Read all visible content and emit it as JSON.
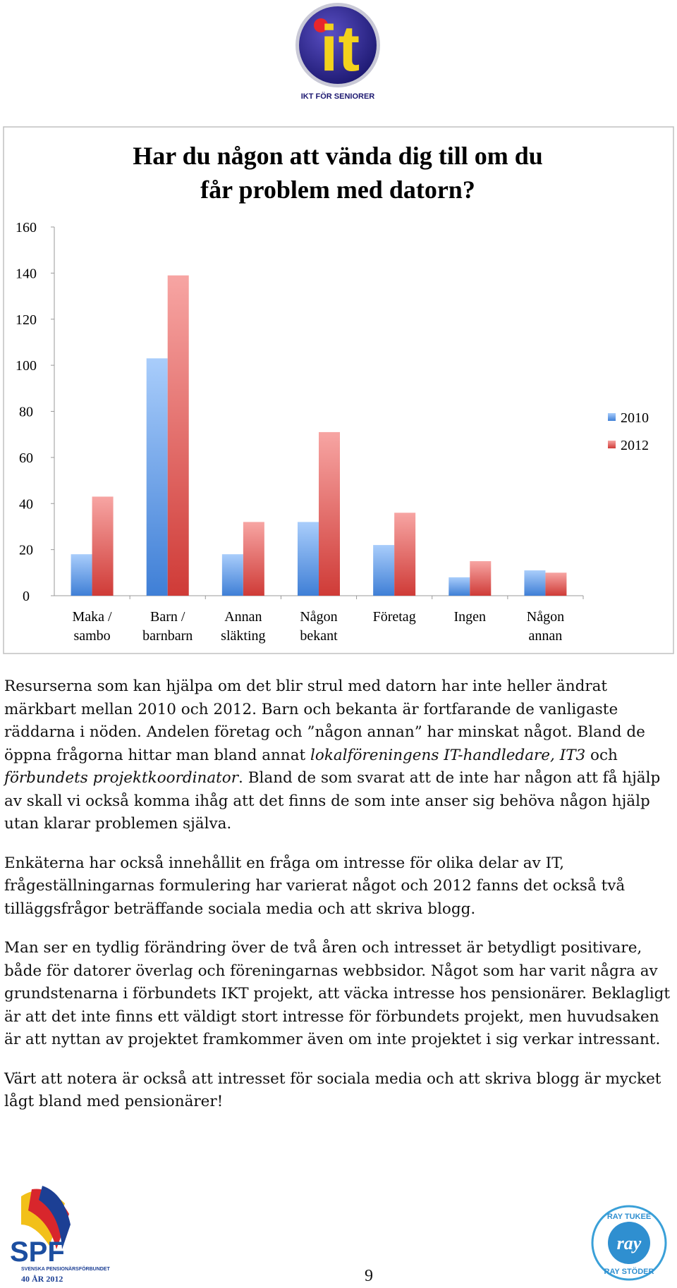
{
  "header": {
    "logo_mark": "it",
    "logo_caption": "IKT FÖR SENIORER"
  },
  "chart_data": {
    "type": "bar",
    "title": [
      "Har du någon att vända dig till om du",
      "får problem med datorn?"
    ],
    "categories": [
      [
        "Maka /",
        "sambo"
      ],
      [
        "Barn /",
        "barnbarn"
      ],
      [
        "Annan",
        "släkting"
      ],
      [
        "Någon",
        "bekant"
      ],
      [
        "Företag"
      ],
      [
        "Ingen"
      ],
      [
        "Någon",
        "annan"
      ]
    ],
    "series": [
      {
        "name": "2010",
        "color": "#5b8fd9",
        "values": [
          18,
          103,
          18,
          32,
          22,
          8,
          11
        ]
      },
      {
        "name": "2012",
        "color": "#d9534f",
        "values": [
          43,
          139,
          32,
          71,
          36,
          15,
          10
        ]
      }
    ],
    "ylim": [
      0,
      160
    ],
    "yticks": [
      0,
      20,
      40,
      60,
      80,
      100,
      120,
      140,
      160
    ],
    "grid": false,
    "legend": "right"
  },
  "paragraphs": [
    [
      {
        "text": "Resurserna som kan hjälpa om det blir strul med datorn har inte heller ändrat märkbart mellan 2010 och 2012. Barn och bekanta är fortfarande de vanligaste räddarna i nöden. Andelen företag och ”någon annan” har minskat något. Bland de öppna frågorna hittar man bland annat ",
        "italic": false
      },
      {
        "text": "lokalföreningens IT-handledare, IT3",
        "italic": true
      },
      {
        "text": " och ",
        "italic": false
      },
      {
        "text": "förbundets projektkoordinator",
        "italic": true
      },
      {
        "text": ". Bland de som svarat att de inte har någon att få hjälp av skall vi också komma ihåg att det finns de som inte anser sig behöva någon hjälp utan klarar problemen själva.",
        "italic": false
      }
    ],
    [
      {
        "text": "Enkäterna har också innehållit en fråga om intresse för olika delar av IT, frågeställningarnas formulering har varierat något och 2012 fanns det också två tilläggsfrågor beträffande sociala media och att skriva blogg.",
        "italic": false
      }
    ],
    [
      {
        "text": "Man ser en tydlig förändring över de två åren och intresset är betydligt positivare, både för datorer överlag och föreningarnas webbsidor. Något som har varit några av grundstenarna i förbundets IKT projekt, att väcka intresse hos pensionärer. Beklagligt är att det inte finns ett väldigt stort intresse för förbundets projekt, men huvudsaken är att nyttan av projektet framkommer även om inte projektet i sig verkar intressant.",
        "italic": false
      }
    ],
    [
      {
        "text": "Värt att notera är också att intresset för sociala media och att skriva blogg är mycket lågt bland med pensionärer!",
        "italic": false
      }
    ]
  ],
  "footer": {
    "spf": "SPF",
    "spf_name": "SVENSKA PENSIONÄRSFÖRBUNDET",
    "spf_year": "40 ÅR 2012",
    "page_number": "9",
    "ray_top": "RAY TUKEE",
    "ray_mark": "ray",
    "ray_bottom": "RAY STÖDER"
  }
}
